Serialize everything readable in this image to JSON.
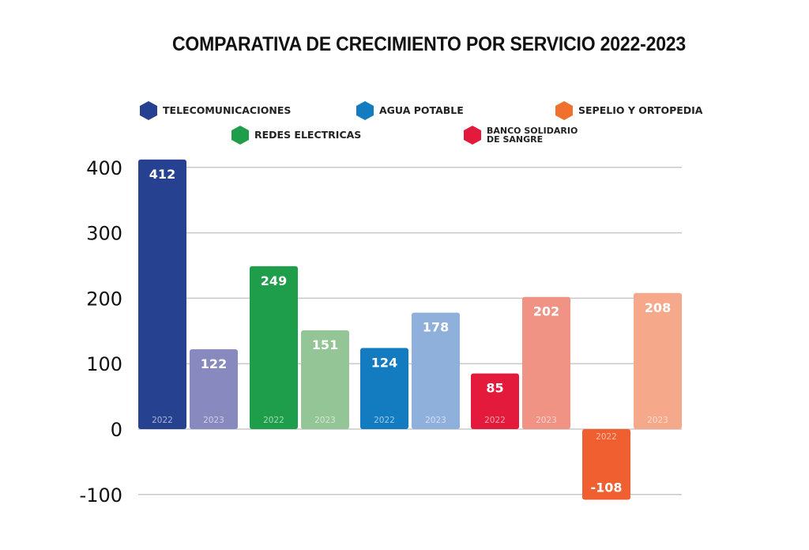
{
  "chart_data": {
    "type": "bar",
    "title": "COMPARATIVA DE CRECIMIENTO POR SERVICIO 2022-2023",
    "xlabel": "",
    "ylabel": "",
    "ylim": [
      -100,
      400
    ],
    "yticks": [
      400,
      300,
      200,
      100,
      0,
      -100
    ],
    "grid": true,
    "legend_position": "top",
    "categories": [
      "TELECOMUNICACIONES",
      "REDES ELECTRICAS",
      "AGUA POTABLE",
      "BANCO SOLIDARIO DE SANGRE",
      "SEPELIO Y ORTOPEDIA"
    ],
    "series": [
      {
        "name": "2022",
        "values": [
          412,
          249,
          124,
          85,
          -108
        ]
      },
      {
        "name": "2023",
        "values": [
          122,
          151,
          178,
          202,
          208
        ]
      }
    ],
    "legend": [
      {
        "label": "TELECOMUNICACIONES",
        "color": "#26418f"
      },
      {
        "label": "AGUA POTABLE",
        "color": "#137bbf"
      },
      {
        "label": "SEPELIO Y ORTOPEDIA",
        "color": "#f0702e"
      },
      {
        "label": "REDES ELECTRICAS",
        "color": "#1e9e4a"
      },
      {
        "label_line1": "BANCO SOLIDARIO",
        "label_line2": "DE SANGRE",
        "color": "#e31a3c"
      }
    ],
    "colors_2022": [
      "#26418f",
      "#1e9e4a",
      "#137bbf",
      "#e31a3c",
      "#ef5f2f"
    ],
    "colors_2023": [
      "#8889bf",
      "#94c596",
      "#8fb0db",
      "#f09385",
      "#f6a98a"
    ],
    "year_labels": [
      "2022",
      "2023"
    ]
  }
}
